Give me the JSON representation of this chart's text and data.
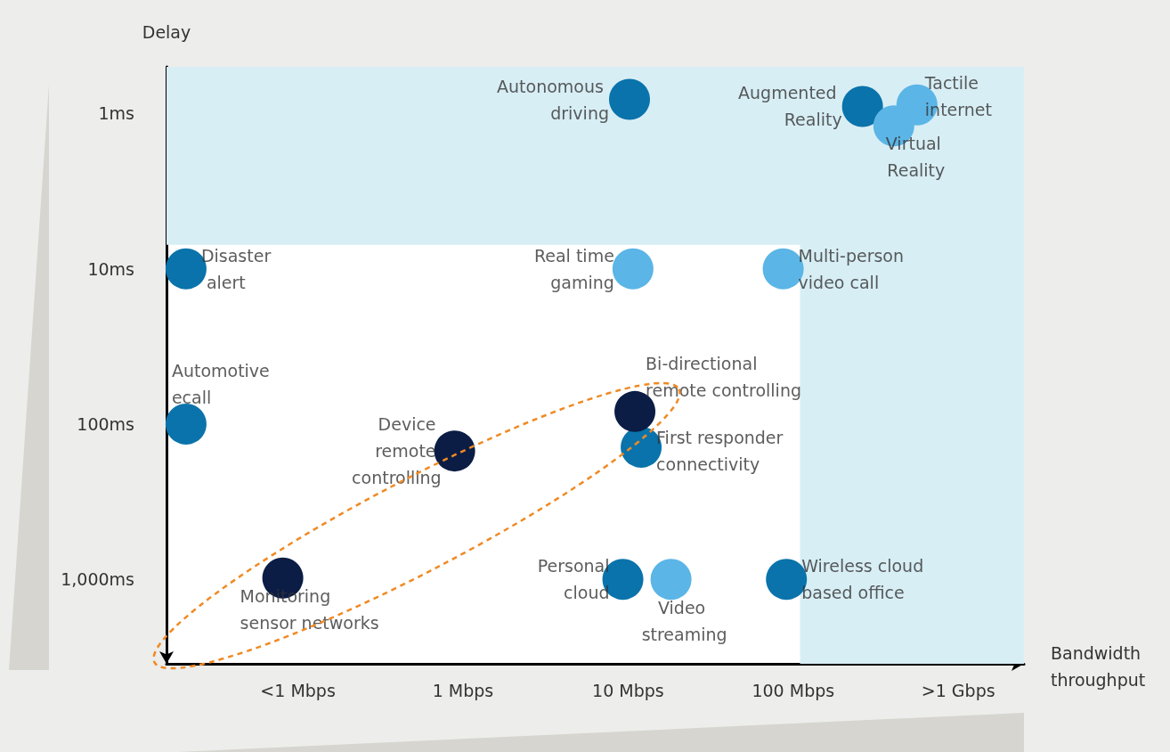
{
  "chart_data": {
    "type": "scatter",
    "xlabel": "Bandwidth throughput",
    "ylabel": "Delay",
    "xlim": [
      0.016,
      2500
    ],
    "xticks": [
      {
        "value": 0.1,
        "label": "<1 Mbps"
      },
      {
        "value": 1,
        "label": "1 Mbps"
      },
      {
        "value": 10,
        "label": "10 Mbps"
      },
      {
        "value": 100,
        "label": "100 Mbps"
      },
      {
        "value": 1000,
        "label": ">1 Gbps"
      }
    ],
    "ylim": [
      3500,
      0.5
    ],
    "yticks": [
      {
        "value": 1,
        "label": "1ms"
      },
      {
        "value": 10,
        "label": "10ms"
      },
      {
        "value": 100,
        "label": "100ms"
      },
      {
        "value": 1000,
        "label": "1,000ms"
      }
    ],
    "log": "xy",
    "grid": false,
    "marker": "circle",
    "series": [
      {
        "color": "#0a73ab",
        "x": [
          10.2,
          263,
          0.021,
          0.021,
          12,
          9.3,
          91
        ],
        "values": [
          0.81,
          0.9,
          10,
          100,
          141,
          1000,
          1000
        ]
      },
      {
        "color": "#5bb5e6",
        "x": [
          407,
          562,
          10.7,
          87,
          18.2
        ],
        "values": [
          1.2,
          0.88,
          10,
          10,
          1000
        ]
      },
      {
        "color": "#0b1d45",
        "x": [
          11,
          0.89,
          0.081
        ],
        "values": [
          83,
          149,
          980
        ]
      }
    ],
    "bands": [
      {
        "axis": "y",
        "from": 0.5,
        "to": 7,
        "color": "#d8eef5"
      },
      {
        "axis": "x",
        "from": 110,
        "to": 2500,
        "color": "#d8eef5"
      }
    ],
    "annotations": [
      {
        "text": "Autonomous driving",
        "x": 10.2,
        "y": 0.81
      },
      {
        "text": "Augmented Reality",
        "x": 263,
        "y": 0.9
      },
      {
        "text": "Tactile internet",
        "x": 562,
        "y": 0.88
      },
      {
        "text": "Virtual Reality",
        "x": 407,
        "y": 1.2
      },
      {
        "text": "Disaster alert",
        "x": 0.021,
        "y": 10
      },
      {
        "text": "Real time gaming",
        "x": 10.7,
        "y": 10
      },
      {
        "text": "Multi-person video call",
        "x": 87,
        "y": 10
      },
      {
        "text": "Automotive ecall",
        "x": 0.021,
        "y": 100
      },
      {
        "text": "Bi-directional remote controlling",
        "x": 11,
        "y": 83
      },
      {
        "text": "Device remote controlling",
        "x": 0.89,
        "y": 149
      },
      {
        "text": "First responder connectivity",
        "x": 12,
        "y": 141
      },
      {
        "text": "Monitoring sensor networks",
        "x": 0.081,
        "y": 980
      },
      {
        "text": "Personal cloud",
        "x": 9.3,
        "y": 1000
      },
      {
        "text": "Video streaming",
        "x": 18.2,
        "y": 1000
      },
      {
        "text": "Wireless cloud based office",
        "x": 91,
        "y": 1000
      }
    ]
  }
}
